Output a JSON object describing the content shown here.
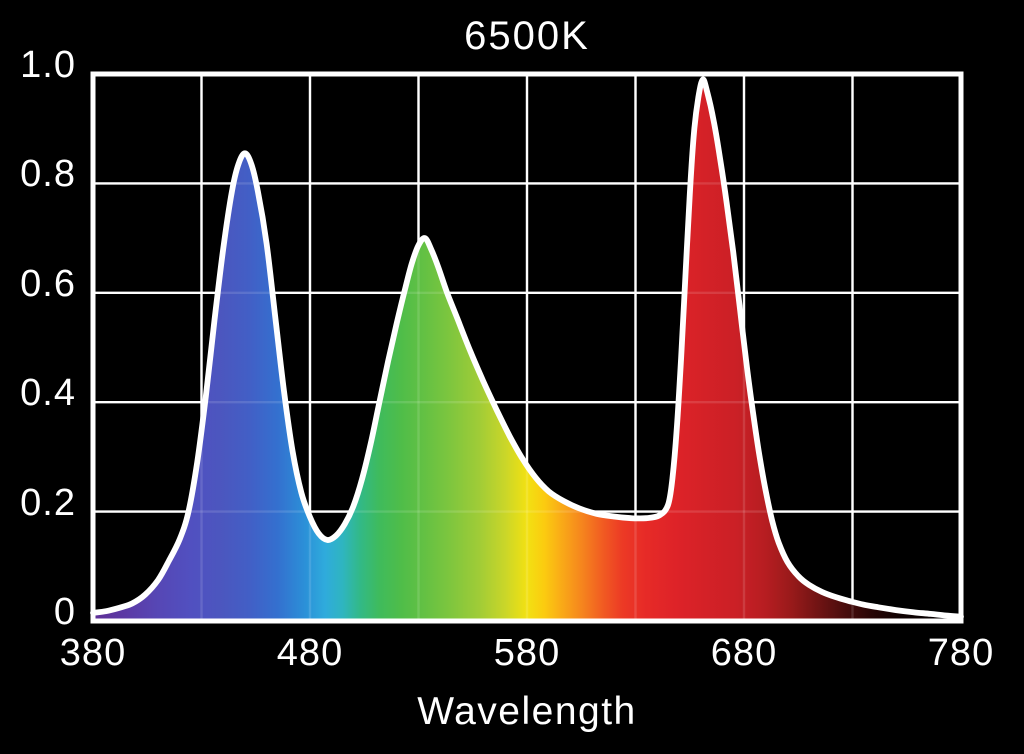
{
  "chart_data": {
    "type": "area",
    "title": "6500K",
    "xlabel": "Wavelength",
    "ylabel": "",
    "x_range": [
      380,
      780
    ],
    "y_range": [
      0,
      1
    ],
    "x_tick_labels": [
      "380",
      "480",
      "580",
      "680",
      "780"
    ],
    "x_tick_values": [
      380,
      480,
      580,
      680,
      780
    ],
    "y_tick_labels": [
      "1.0",
      "0.8",
      "0.6",
      "0.4",
      "0.2",
      "0"
    ],
    "y_tick_values": [
      1.0,
      0.8,
      0.6,
      0.4,
      0.2,
      0
    ],
    "x_gridlines": [
      430,
      480,
      530,
      580,
      630,
      680,
      730
    ],
    "y_gridlines": [
      0.2,
      0.4,
      0.6,
      0.8
    ],
    "grid": true,
    "legend": false,
    "colors": {
      "background": "#000000",
      "frame": "#ffffff",
      "gridline": "#ffffff",
      "curve_stroke": "#ffffff",
      "text": "#ffffff"
    },
    "fill_style": "visible-spectrum-gradient",
    "peaks": [
      {
        "name": "blue peak",
        "wavelength": 450,
        "value": 0.855
      },
      {
        "name": "green peak",
        "wavelength": 533,
        "value": 0.7
      },
      {
        "name": "red peak",
        "wavelength": 661,
        "value": 0.99
      }
    ],
    "valleys": [
      {
        "wavelength": 488,
        "value": 0.148
      },
      {
        "wavelength": 632,
        "value": 0.188
      }
    ],
    "series": [
      {
        "name": "6500K spectral power distribution",
        "points": [
          [
            380,
            0.015
          ],
          [
            386,
            0.018
          ],
          [
            392,
            0.024
          ],
          [
            398,
            0.032
          ],
          [
            404,
            0.048
          ],
          [
            410,
            0.075
          ],
          [
            415,
            0.11
          ],
          [
            420,
            0.15
          ],
          [
            424,
            0.2
          ],
          [
            428,
            0.29
          ],
          [
            432,
            0.41
          ],
          [
            436,
            0.55
          ],
          [
            440,
            0.68
          ],
          [
            444,
            0.785
          ],
          [
            447,
            0.835
          ],
          [
            450,
            0.855
          ],
          [
            453,
            0.835
          ],
          [
            456,
            0.785
          ],
          [
            460,
            0.69
          ],
          [
            464,
            0.555
          ],
          [
            468,
            0.42
          ],
          [
            472,
            0.31
          ],
          [
            476,
            0.235
          ],
          [
            480,
            0.19
          ],
          [
            484,
            0.16
          ],
          [
            488,
            0.148
          ],
          [
            492,
            0.156
          ],
          [
            496,
            0.177
          ],
          [
            500,
            0.21
          ],
          [
            504,
            0.26
          ],
          [
            508,
            0.325
          ],
          [
            512,
            0.4
          ],
          [
            516,
            0.475
          ],
          [
            520,
            0.545
          ],
          [
            524,
            0.61
          ],
          [
            527,
            0.655
          ],
          [
            530,
            0.687
          ],
          [
            533,
            0.7
          ],
          [
            536,
            0.678
          ],
          [
            539,
            0.648
          ],
          [
            543,
            0.602
          ],
          [
            548,
            0.552
          ],
          [
            554,
            0.492
          ],
          [
            560,
            0.437
          ],
          [
            566,
            0.386
          ],
          [
            572,
            0.338
          ],
          [
            578,
            0.296
          ],
          [
            584,
            0.262
          ],
          [
            590,
            0.237
          ],
          [
            597,
            0.219
          ],
          [
            604,
            0.206
          ],
          [
            612,
            0.196
          ],
          [
            620,
            0.191
          ],
          [
            628,
            0.188
          ],
          [
            635,
            0.188
          ],
          [
            641,
            0.193
          ],
          [
            645,
            0.212
          ],
          [
            647,
            0.26
          ],
          [
            649,
            0.35
          ],
          [
            651,
            0.48
          ],
          [
            653,
            0.63
          ],
          [
            655,
            0.78
          ],
          [
            657,
            0.895
          ],
          [
            659,
            0.958
          ],
          [
            661,
            0.99
          ],
          [
            663,
            0.968
          ],
          [
            666,
            0.915
          ],
          [
            669,
            0.845
          ],
          [
            672,
            0.765
          ],
          [
            675,
            0.675
          ],
          [
            678,
            0.575
          ],
          [
            681,
            0.475
          ],
          [
            684,
            0.385
          ],
          [
            687,
            0.305
          ],
          [
            690,
            0.238
          ],
          [
            693,
            0.183
          ],
          [
            696,
            0.143
          ],
          [
            700,
            0.108
          ],
          [
            705,
            0.082
          ],
          [
            710,
            0.066
          ],
          [
            716,
            0.053
          ],
          [
            722,
            0.044
          ],
          [
            728,
            0.037
          ],
          [
            735,
            0.03
          ],
          [
            742,
            0.025
          ],
          [
            750,
            0.02
          ],
          [
            758,
            0.016
          ],
          [
            766,
            0.013
          ],
          [
            773,
            0.01
          ],
          [
            780,
            0.008
          ]
        ]
      }
    ],
    "spectrum_gradient": [
      {
        "wavelength": 380,
        "color": "#5e2f96"
      },
      {
        "wavelength": 395,
        "color": "#5c3aa5"
      },
      {
        "wavelength": 410,
        "color": "#5647b5"
      },
      {
        "wavelength": 425,
        "color": "#5150c0"
      },
      {
        "wavelength": 440,
        "color": "#4b57bf"
      },
      {
        "wavelength": 452,
        "color": "#425fc6"
      },
      {
        "wavelength": 465,
        "color": "#3470cf"
      },
      {
        "wavelength": 478,
        "color": "#2b91d8"
      },
      {
        "wavelength": 487,
        "color": "#2fabdc"
      },
      {
        "wavelength": 495,
        "color": "#2fb5c0"
      },
      {
        "wavelength": 503,
        "color": "#32b987"
      },
      {
        "wavelength": 512,
        "color": "#3fbb5c"
      },
      {
        "wavelength": 522,
        "color": "#4fbd49"
      },
      {
        "wavelength": 533,
        "color": "#64c143"
      },
      {
        "wavelength": 545,
        "color": "#7fc63e"
      },
      {
        "wavelength": 558,
        "color": "#a0cc37"
      },
      {
        "wavelength": 570,
        "color": "#cad629"
      },
      {
        "wavelength": 580,
        "color": "#f2e112"
      },
      {
        "wavelength": 588,
        "color": "#fbcb10"
      },
      {
        "wavelength": 597,
        "color": "#f9a618"
      },
      {
        "wavelength": 606,
        "color": "#f5821e"
      },
      {
        "wavelength": 615,
        "color": "#f15b22"
      },
      {
        "wavelength": 624,
        "color": "#ec3a25"
      },
      {
        "wavelength": 634,
        "color": "#e72b27"
      },
      {
        "wavelength": 648,
        "color": "#de2328"
      },
      {
        "wavelength": 662,
        "color": "#d42127"
      },
      {
        "wavelength": 676,
        "color": "#cb2026"
      },
      {
        "wavelength": 690,
        "color": "#b61d21"
      },
      {
        "wavelength": 702,
        "color": "#981a1a"
      },
      {
        "wavelength": 714,
        "color": "#711414"
      },
      {
        "wavelength": 726,
        "color": "#4b0d0d"
      },
      {
        "wavelength": 738,
        "color": "#2a0606"
      },
      {
        "wavelength": 752,
        "color": "#100202"
      },
      {
        "wavelength": 780,
        "color": "#000000"
      }
    ]
  }
}
